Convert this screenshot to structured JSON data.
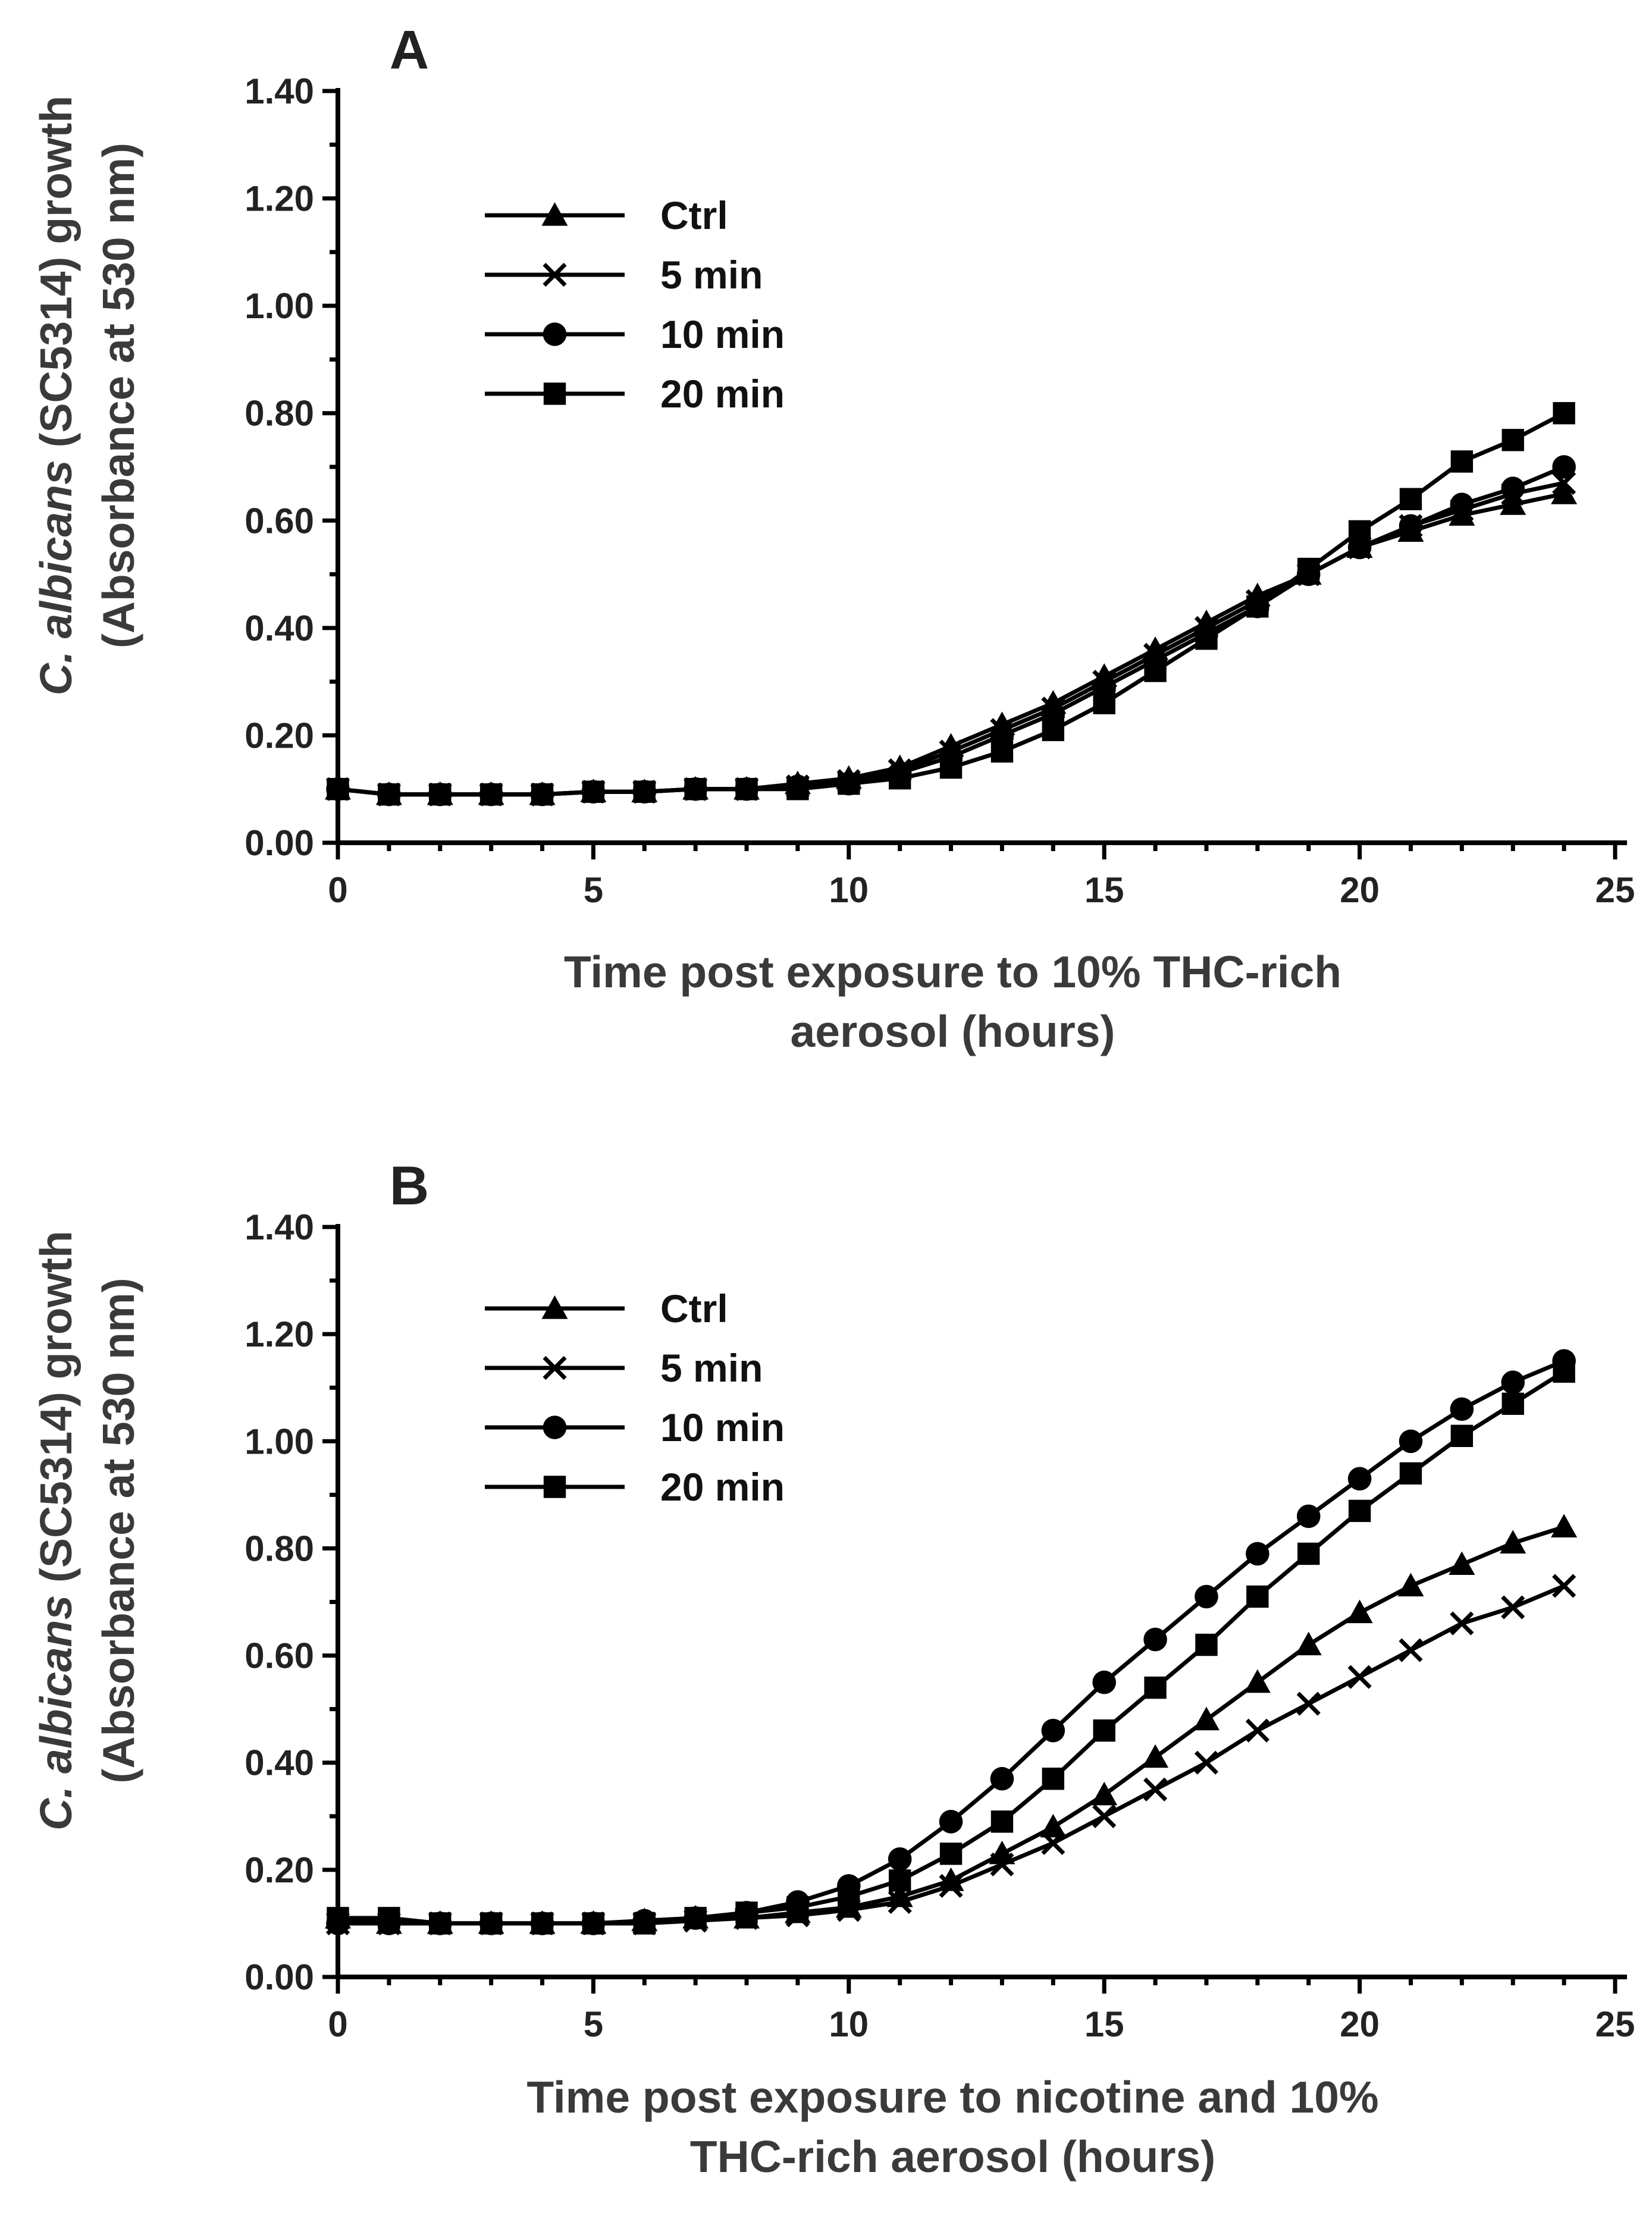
{
  "chart_data": [
    {
      "panel": "A",
      "type": "line",
      "ylabel_line1_italic": "C. albicans",
      "ylabel_line1_rest": " (SC5314) growth",
      "ylabel_line2": "(Absorbance at  530 nm)",
      "xlabel_line1": "Time post exposure to 10% THC-rich",
      "xlabel_line2": "aerosol (hours)",
      "xlim": [
        0,
        25
      ],
      "ylim": [
        0,
        1.4
      ],
      "x_ticks": [
        "0",
        "5",
        "10",
        "15",
        "20",
        "25"
      ],
      "y_ticks": [
        "0.00",
        "0.20",
        "0.40",
        "0.60",
        "0.80",
        "1.00",
        "1.20",
        "1.40"
      ],
      "legend_position": "top-left",
      "x": [
        0,
        1,
        2,
        3,
        4,
        5,
        6,
        7,
        8,
        9,
        10,
        11,
        12,
        13,
        14,
        15,
        16,
        17,
        18,
        19,
        20,
        21,
        22,
        23,
        24
      ],
      "series": [
        {
          "name": "Ctrl",
          "marker": "triangle",
          "values": [
            0.1,
            0.09,
            0.09,
            0.09,
            0.09,
            0.095,
            0.095,
            0.1,
            0.1,
            0.11,
            0.12,
            0.14,
            0.18,
            0.22,
            0.26,
            0.31,
            0.36,
            0.41,
            0.46,
            0.5,
            0.55,
            0.58,
            0.61,
            0.63,
            0.65
          ]
        },
        {
          "name": "5 min",
          "marker": "cross",
          "values": [
            0.1,
            0.09,
            0.09,
            0.09,
            0.09,
            0.095,
            0.095,
            0.1,
            0.1,
            0.105,
            0.115,
            0.135,
            0.17,
            0.21,
            0.25,
            0.3,
            0.35,
            0.4,
            0.45,
            0.5,
            0.55,
            0.59,
            0.62,
            0.65,
            0.67
          ]
        },
        {
          "name": "10 min",
          "marker": "circle",
          "values": [
            0.1,
            0.09,
            0.09,
            0.09,
            0.09,
            0.095,
            0.095,
            0.1,
            0.1,
            0.105,
            0.11,
            0.13,
            0.16,
            0.2,
            0.24,
            0.29,
            0.34,
            0.39,
            0.44,
            0.5,
            0.55,
            0.59,
            0.63,
            0.66,
            0.7
          ]
        },
        {
          "name": "20 min",
          "marker": "square",
          "values": [
            0.1,
            0.09,
            0.09,
            0.09,
            0.09,
            0.095,
            0.095,
            0.1,
            0.1,
            0.1,
            0.11,
            0.12,
            0.14,
            0.17,
            0.21,
            0.26,
            0.32,
            0.38,
            0.44,
            0.51,
            0.58,
            0.64,
            0.71,
            0.75,
            0.8
          ]
        }
      ]
    },
    {
      "panel": "B",
      "type": "line",
      "ylabel_line1_italic": "C. albicans",
      "ylabel_line1_rest": " (SC5314) growth",
      "ylabel_line2": "(Absorbance at  530 nm)",
      "xlabel_line1": "Time post exposure to nicotine and 10%",
      "xlabel_line2": "THC-rich aerosol (hours)",
      "xlim": [
        0,
        25
      ],
      "ylim": [
        0,
        1.4
      ],
      "x_ticks": [
        "0",
        "5",
        "10",
        "15",
        "20",
        "25"
      ],
      "y_ticks": [
        "0.00",
        "0.20",
        "0.40",
        "0.60",
        "0.80",
        "1.00",
        "1.20",
        "1.40"
      ],
      "legend_position": "top-left",
      "x": [
        0,
        1,
        2,
        3,
        4,
        5,
        6,
        7,
        8,
        9,
        10,
        11,
        12,
        13,
        14,
        15,
        16,
        17,
        18,
        19,
        20,
        21,
        22,
        23,
        24
      ],
      "series": [
        {
          "name": "Ctrl",
          "marker": "triangle",
          "values": [
            0.11,
            0.1,
            0.1,
            0.1,
            0.1,
            0.1,
            0.105,
            0.11,
            0.11,
            0.12,
            0.13,
            0.15,
            0.18,
            0.23,
            0.28,
            0.34,
            0.41,
            0.48,
            0.55,
            0.62,
            0.68,
            0.73,
            0.77,
            0.81,
            0.84
          ]
        },
        {
          "name": "5 min",
          "marker": "cross",
          "values": [
            0.1,
            0.1,
            0.1,
            0.1,
            0.1,
            0.1,
            0.1,
            0.105,
            0.11,
            0.115,
            0.125,
            0.14,
            0.17,
            0.21,
            0.25,
            0.3,
            0.35,
            0.4,
            0.46,
            0.51,
            0.56,
            0.61,
            0.66,
            0.69,
            0.73
          ]
        },
        {
          "name": "10 min",
          "marker": "circle",
          "values": [
            0.1,
            0.1,
            0.1,
            0.1,
            0.1,
            0.1,
            0.105,
            0.11,
            0.12,
            0.14,
            0.17,
            0.22,
            0.29,
            0.37,
            0.46,
            0.55,
            0.63,
            0.71,
            0.79,
            0.86,
            0.93,
            1.0,
            1.06,
            1.11,
            1.15
          ]
        },
        {
          "name": "20 min",
          "marker": "square",
          "values": [
            0.11,
            0.11,
            0.1,
            0.1,
            0.1,
            0.1,
            0.1,
            0.11,
            0.12,
            0.13,
            0.15,
            0.18,
            0.23,
            0.29,
            0.37,
            0.46,
            0.54,
            0.62,
            0.71,
            0.79,
            0.87,
            0.94,
            1.01,
            1.07,
            1.13
          ]
        }
      ]
    }
  ]
}
